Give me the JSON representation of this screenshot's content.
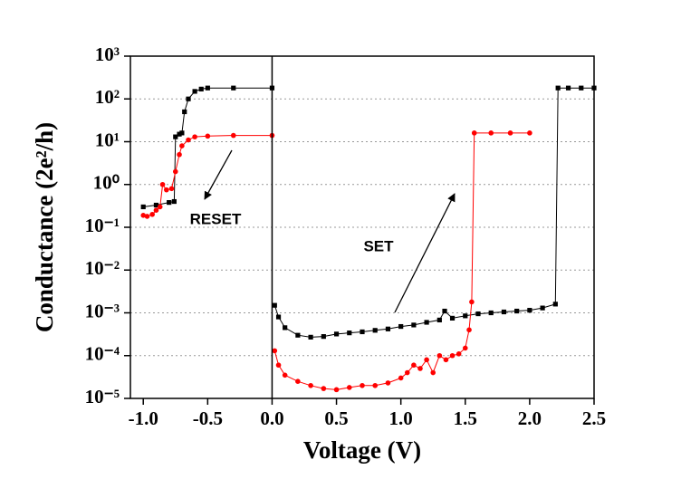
{
  "chart_data": {
    "type": "line",
    "xlabel": "Voltage (V)",
    "ylabel": "Conductance (2e²/h)",
    "xlim": [
      -1.1,
      2.5
    ],
    "ylim": [
      1e-05,
      1000
    ],
    "log_y": true,
    "grid": true,
    "xticks": [
      {
        "value": -1,
        "label": "-1.0"
      },
      {
        "value": -0.5,
        "label": "-0.5"
      },
      {
        "value": 0,
        "label": "0.0"
      },
      0.5,
      {
        "value": 1,
        "label": "1.0"
      },
      1.5,
      {
        "value": 2,
        "label": "2.0"
      },
      2.5
    ],
    "yticks": [
      {
        "value": 1e-05,
        "label": "10⁻⁵"
      },
      {
        "value": 0.0001,
        "label": "10⁻⁴"
      },
      {
        "value": 0.001,
        "label": "10⁻³"
      },
      {
        "value": 0.01,
        "label": "10⁻²"
      },
      {
        "value": 0.1,
        "label": "10⁻¹"
      },
      {
        "value": 1,
        "label": "10⁰"
      },
      {
        "value": 10,
        "label": "10¹"
      },
      {
        "value": 100,
        "label": "10²"
      },
      {
        "value": 1000,
        "label": "10³"
      }
    ],
    "annotations": [
      "RESET",
      "SET"
    ],
    "series": [
      {
        "color": "#000000",
        "marker": "square",
        "x": [
          -1.0,
          -0.9,
          -0.8,
          -0.76,
          -0.75,
          -0.72,
          -0.7,
          -0.68,
          -0.65,
          -0.6,
          -0.55,
          -0.5,
          -0.3,
          0.0,
          null,
          0.02,
          0.05,
          0.1,
          0.2,
          0.3,
          0.4,
          0.5,
          0.6,
          0.7,
          0.8,
          0.9,
          1.0,
          1.1,
          1.2,
          1.3,
          1.34,
          1.4,
          1.5,
          1.6,
          1.7,
          1.8,
          1.9,
          2.0,
          2.1,
          2.2,
          2.22,
          2.3,
          2.4,
          2.5
        ],
        "values": [
          0.3,
          0.33,
          0.38,
          0.4,
          13,
          15,
          16,
          50,
          100,
          150,
          170,
          180,
          180,
          180,
          null,
          0.0015,
          0.0008,
          0.00045,
          0.0003,
          0.00027,
          0.00028,
          0.00032,
          0.00034,
          0.00036,
          0.00039,
          0.00042,
          0.00048,
          0.00052,
          0.0006,
          0.00068,
          0.0011,
          0.00075,
          0.00085,
          0.00095,
          0.001,
          0.00105,
          0.0011,
          0.00115,
          0.0013,
          0.0016,
          180,
          180,
          180,
          180
        ]
      },
      {
        "color": "#ff0000",
        "marker": "circle",
        "x": [
          -1.0,
          -0.97,
          -0.93,
          -0.9,
          -0.87,
          -0.85,
          -0.82,
          -0.78,
          -0.75,
          -0.72,
          -0.7,
          -0.65,
          -0.6,
          -0.5,
          -0.3,
          0.0,
          null,
          0.02,
          0.05,
          0.1,
          0.2,
          0.3,
          0.4,
          0.5,
          0.6,
          0.7,
          0.8,
          0.9,
          1.0,
          1.05,
          1.1,
          1.15,
          1.2,
          1.25,
          1.3,
          1.35,
          1.4,
          1.45,
          1.5,
          1.53,
          1.55,
          1.57,
          1.7,
          1.85,
          2.0
        ],
        "values": [
          0.19,
          0.18,
          0.2,
          0.25,
          0.3,
          1.0,
          0.75,
          0.8,
          2,
          5,
          8,
          11,
          13,
          13.5,
          14,
          14,
          null,
          0.00013,
          6e-05,
          3.5e-05,
          2.5e-05,
          2e-05,
          1.7e-05,
          1.6e-05,
          1.8e-05,
          2e-05,
          2e-05,
          2.3e-05,
          3e-05,
          4e-05,
          6e-05,
          5e-05,
          8e-05,
          4e-05,
          0.0001,
          8e-05,
          0.0001,
          0.00011,
          0.00015,
          0.0004,
          0.0018,
          16,
          16,
          16,
          16
        ]
      }
    ]
  }
}
